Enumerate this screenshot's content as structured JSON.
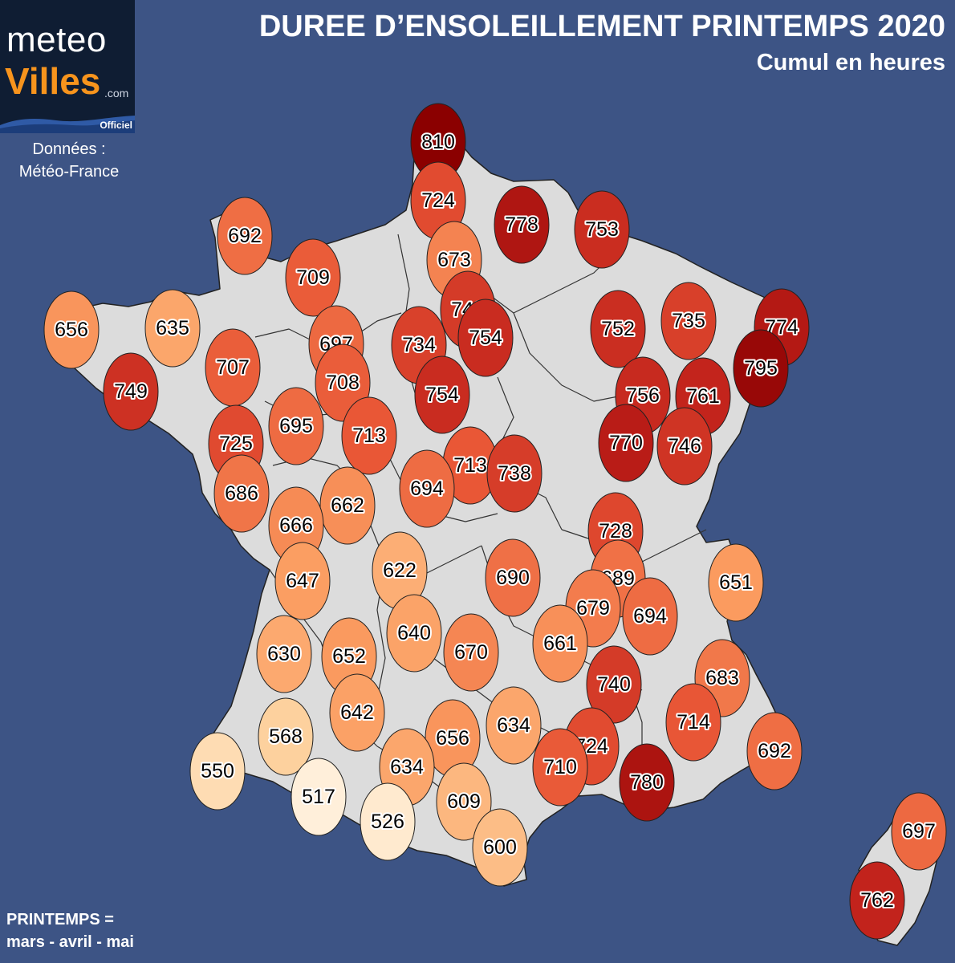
{
  "header": {
    "title": "DUREE D’ENSOLEILLEMENT PRINTEMPS 2020",
    "subtitle": "Cumul en heures"
  },
  "logo": {
    "meteo": "meteo",
    "villes": "Villes",
    "dotcom": ".com",
    "officiel": "Officiel"
  },
  "source": {
    "line1": "Données :",
    "line2": "Météo-France"
  },
  "footer": {
    "line1": "PRINTEMPS =",
    "line2": "mars - avril - mai"
  },
  "colors": {
    "ocean": "#3d5485",
    "land": "#dcdcdc",
    "border": "#222222",
    "scale": [
      "#fff0dc",
      "#fdd09c",
      "#fb9c60",
      "#e85535",
      "#c0201a",
      "#8b0000"
    ]
  },
  "map_data": {
    "unit": "heures",
    "stations": [
      {
        "value": 810
      },
      {
        "value": 724
      },
      {
        "value": 778
      },
      {
        "value": 753
      },
      {
        "value": 673
      },
      {
        "value": 692
      },
      {
        "value": 709
      },
      {
        "value": 740
      },
      {
        "value": 656
      },
      {
        "value": 635
      },
      {
        "value": 697
      },
      {
        "value": 734
      },
      {
        "value": 754
      },
      {
        "value": 752
      },
      {
        "value": 735
      },
      {
        "value": 774
      },
      {
        "value": 707
      },
      {
        "value": 749
      },
      {
        "value": 708
      },
      {
        "value": 754
      },
      {
        "value": 795
      },
      {
        "value": 756
      },
      {
        "value": 761
      },
      {
        "value": 695
      },
      {
        "value": 713
      },
      {
        "value": 725
      },
      {
        "value": 713
      },
      {
        "value": 738
      },
      {
        "value": 770
      },
      {
        "value": 746
      },
      {
        "value": 694
      },
      {
        "value": 686
      },
      {
        "value": 662
      },
      {
        "value": 666
      },
      {
        "value": 728
      },
      {
        "value": 622
      },
      {
        "value": 690
      },
      {
        "value": 689
      },
      {
        "value": 651
      },
      {
        "value": 647
      },
      {
        "value": 679
      },
      {
        "value": 694
      },
      {
        "value": 640
      },
      {
        "value": 661
      },
      {
        "value": 630
      },
      {
        "value": 652
      },
      {
        "value": 670
      },
      {
        "value": 740
      },
      {
        "value": 683
      },
      {
        "value": 642
      },
      {
        "value": 714
      },
      {
        "value": 568
      },
      {
        "value": 656
      },
      {
        "value": 634
      },
      {
        "value": 724
      },
      {
        "value": 692
      },
      {
        "value": 550
      },
      {
        "value": 634
      },
      {
        "value": 710
      },
      {
        "value": 780
      },
      {
        "value": 517
      },
      {
        "value": 609
      },
      {
        "value": 526
      },
      {
        "value": 600
      },
      {
        "value": 697
      },
      {
        "value": 762
      }
    ]
  }
}
